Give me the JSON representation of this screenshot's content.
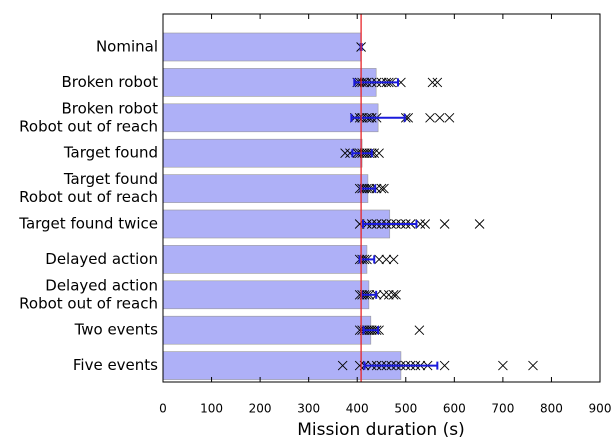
{
  "chart_data": {
    "type": "hbar",
    "categories": [
      [
        "Nominal"
      ],
      [
        "Broken robot"
      ],
      [
        "Broken robot",
        "Robot out of reach"
      ],
      [
        "Target found"
      ],
      [
        "Target found",
        "Robot out of reach"
      ],
      [
        "Target found twice"
      ],
      [
        "Delayed action"
      ],
      [
        "Delayed action",
        "Robot out of reach"
      ],
      [
        "Two events"
      ],
      [
        "Five events"
      ]
    ],
    "values": [
      408,
      439,
      443,
      410,
      422,
      467,
      420,
      424,
      428,
      490
    ],
    "errors": [
      1,
      45,
      55,
      20,
      15,
      55,
      15,
      15,
      15,
      75
    ],
    "points": [
      [
        408
      ],
      [
        400,
        405,
        410,
        415,
        420,
        430,
        440,
        450,
        460,
        465,
        470,
        490,
        555,
        565
      ],
      [
        395,
        405,
        410,
        420,
        425,
        430,
        440,
        500,
        505,
        550,
        570,
        590
      ],
      [
        375,
        385,
        400,
        405,
        410,
        415,
        420,
        425,
        430,
        435,
        445
      ],
      [
        405,
        410,
        415,
        420,
        425,
        430,
        440,
        450,
        455
      ],
      [
        405,
        420,
        430,
        440,
        450,
        460,
        470,
        480,
        490,
        500,
        510,
        530,
        540,
        580,
        652
      ],
      [
        405,
        410,
        415,
        420,
        445,
        460,
        475
      ],
      [
        405,
        410,
        415,
        420,
        425,
        440,
        455,
        465,
        475,
        480
      ],
      [
        405,
        410,
        415,
        420,
        425,
        430,
        435,
        440,
        445,
        528
      ],
      [
        370,
        405,
        415,
        430,
        440,
        450,
        460,
        470,
        480,
        490,
        500,
        510,
        520,
        530,
        545,
        580,
        700,
        762
      ]
    ],
    "color": "#aeb0f7",
    "error_color": "#1a1adc",
    "point_color": "#000000",
    "reference_line": {
      "value": 408,
      "color": "#e8262a"
    },
    "xlabel": "Mission duration (s)",
    "xlim": [
      0,
      900
    ],
    "xticks": [
      0,
      100,
      200,
      300,
      400,
      500,
      600,
      700,
      800,
      900
    ]
  }
}
